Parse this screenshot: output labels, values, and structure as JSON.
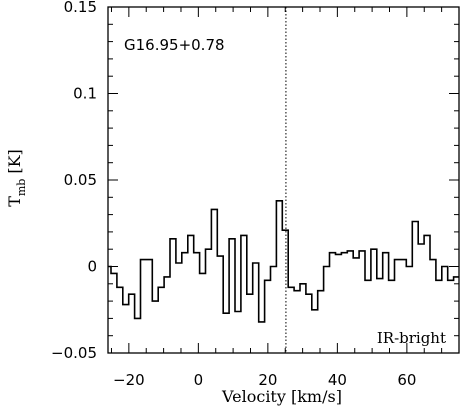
{
  "chart_data": {
    "type": "line",
    "drawstyle": "steps-mid",
    "xlabel": "Velocity [km/s]",
    "ylabel_main": "T",
    "ylabel_sub": "mb",
    "ylabel_unit": "[K]",
    "xlim": [
      -26,
      75
    ],
    "ylim": [
      -0.05,
      0.15
    ],
    "x_ticks": [
      -20,
      0,
      20,
      40,
      60
    ],
    "x_tick_labels": [
      "−20",
      "0",
      "20",
      "40",
      "60"
    ],
    "y_ticks": [
      -0.05,
      0,
      0.05,
      0.1,
      0.15
    ],
    "y_tick_labels": [
      "−0.05",
      "0",
      "0.05",
      "0.1",
      "0.15"
    ],
    "annotations": {
      "source": "G16.95+0.78",
      "class": "IR-bright"
    },
    "reference_line_x": 25.2,
    "series": [
      {
        "x": [
          -26.0,
          -24.3,
          -22.6,
          -20.9,
          -19.2,
          -17.5,
          -15.8,
          -14.1,
          -12.4,
          -10.7,
          -9.0,
          -7.3,
          -5.6,
          -3.9,
          -2.2,
          -0.5,
          1.2,
          2.9,
          4.6,
          6.3,
          8.0,
          9.7,
          11.4,
          13.1,
          14.8,
          16.5,
          18.2,
          19.9,
          21.6,
          23.3,
          25.0,
          26.7,
          28.4,
          30.1,
          31.8,
          33.5,
          35.2,
          36.9,
          38.6,
          40.3,
          42.0,
          43.7,
          45.4,
          47.1,
          48.8,
          50.5,
          52.2,
          53.9,
          55.6,
          57.3,
          59.0,
          60.7,
          62.4,
          64.1,
          65.8,
          67.5,
          69.2,
          70.9,
          72.6,
          74.3
        ],
        "y": [
          0.0,
          -0.004,
          -0.012,
          -0.022,
          -0.016,
          -0.03,
          0.004,
          0.004,
          -0.02,
          -0.012,
          -0.006,
          0.016,
          0.002,
          0.008,
          0.018,
          0.008,
          -0.004,
          0.01,
          0.033,
          0.006,
          -0.027,
          0.016,
          -0.026,
          0.018,
          -0.016,
          0.002,
          -0.032,
          -0.008,
          0.0,
          0.038,
          0.021,
          -0.012,
          -0.014,
          -0.01,
          -0.016,
          -0.025,
          -0.014,
          0.0,
          0.008,
          0.007,
          0.008,
          0.009,
          0.005,
          0.009,
          -0.008,
          0.01,
          -0.007,
          0.008,
          -0.008,
          0.004,
          0.004,
          0.0,
          0.026,
          0.013,
          0.018,
          0.004,
          -0.008,
          0.0,
          -0.008,
          -0.006
        ]
      }
    ]
  }
}
